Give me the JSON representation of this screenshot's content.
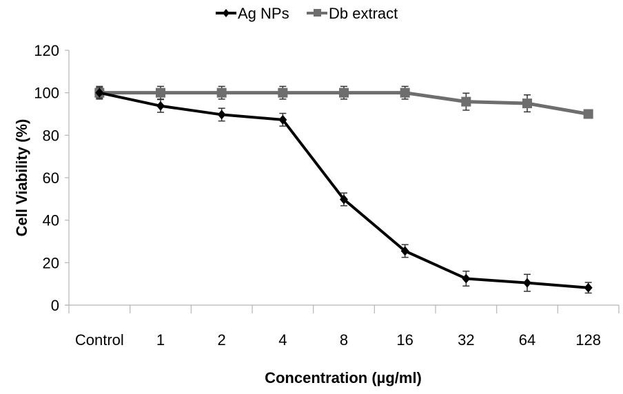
{
  "chart_data": {
    "type": "line",
    "title": "",
    "xlabel": "Concentration (µg/ml)",
    "ylabel": "Cell Viability (%)",
    "categories": [
      "Control",
      "1",
      "2",
      "4",
      "8",
      "16",
      "32",
      "64",
      "128"
    ],
    "ylim": [
      0,
      120
    ],
    "yticks": [
      0,
      20,
      40,
      60,
      80,
      100,
      120
    ],
    "grid": false,
    "legend_position": "top-center",
    "series": [
      {
        "name": "Ag NPs",
        "color": "#000000",
        "marker": "diamond",
        "values": [
          100,
          93.8,
          89.7,
          87.3,
          49.8,
          25.5,
          12.5,
          10.5,
          8.2
        ],
        "errors": [
          2.5,
          3,
          3,
          3,
          3,
          3,
          3.5,
          4,
          2.5
        ]
      },
      {
        "name": "Db extract",
        "color": "#6e6e6e",
        "marker": "square",
        "values": [
          100,
          100,
          100,
          100,
          100,
          100,
          95.8,
          95,
          90
        ],
        "errors": [
          3,
          3,
          3,
          3,
          3,
          3,
          4,
          4,
          1
        ]
      }
    ]
  }
}
